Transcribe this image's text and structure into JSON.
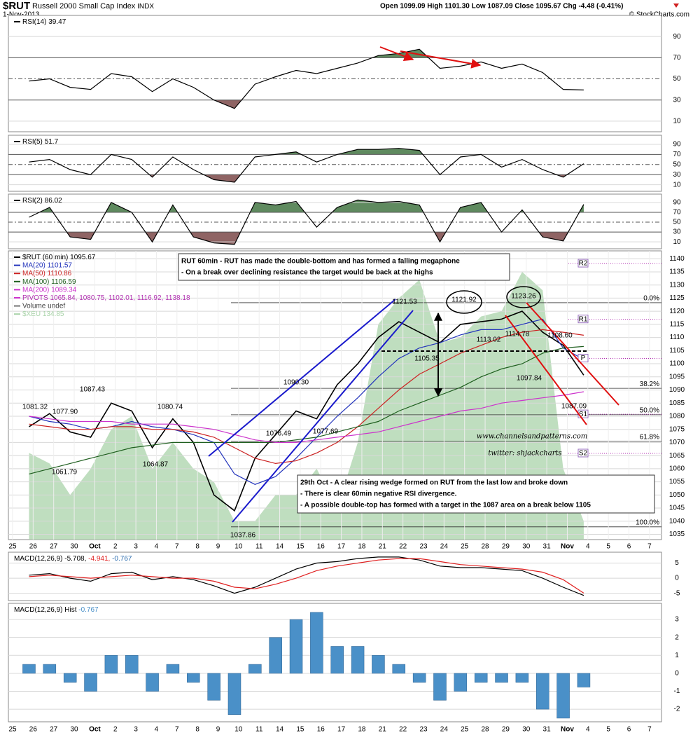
{
  "header": {
    "symbol": "$RUT",
    "name": "Russell 2000 Small Cap Index",
    "exchange": "INDX",
    "date": "1-Nov-2013",
    "quote": "Open 1099.09   High 1101.30   Low 1087.09   Close 1095.67   Chg -4.48 (-0.41%)",
    "credit": "© StockCharts.com"
  },
  "chart_data": [
    {
      "type": "line",
      "ylim": [
        0,
        110
      ],
      "yticks": [
        10,
        30,
        50,
        70,
        90
      ],
      "fill_colors": [
        "#8f6464",
        "#5f8a5f"
      ],
      "series": [
        {
          "name": "RSI(14)",
          "color": "#000000",
          "values": [
            48,
            50,
            42,
            40,
            55,
            52,
            38,
            50,
            42,
            30,
            22,
            45,
            52,
            58,
            55,
            60,
            65,
            72,
            74,
            78,
            60,
            62,
            66,
            60,
            64,
            56,
            40,
            39.47
          ]
        }
      ]
    },
    {
      "type": "line",
      "ylim": [
        -3,
        108
      ],
      "yticks": [
        10,
        30,
        50,
        70,
        90
      ],
      "fill_colors": [
        "#8f6464",
        "#5f8a5f"
      ],
      "series": [
        {
          "name": "RSI(5)",
          "color": "#000000",
          "values": [
            55,
            60,
            40,
            30,
            70,
            60,
            25,
            65,
            40,
            20,
            15,
            65,
            70,
            75,
            55,
            70,
            80,
            80,
            82,
            78,
            30,
            65,
            70,
            45,
            60,
            40,
            25,
            51.7
          ]
        }
      ]
    },
    {
      "type": "line",
      "ylim": [
        -4,
        107
      ],
      "yticks": [
        10,
        30,
        50,
        70,
        90
      ],
      "fill_colors": [
        "#8f6464",
        "#5f8a5f"
      ],
      "series": [
        {
          "name": "RSI(2)",
          "color": "#000000",
          "values": [
            60,
            80,
            20,
            15,
            90,
            70,
            10,
            85,
            20,
            8,
            5,
            90,
            85,
            92,
            40,
            80,
            95,
            90,
            92,
            85,
            10,
            80,
            90,
            30,
            75,
            20,
            12,
            86.02
          ]
        }
      ]
    },
    {
      "type": "line",
      "ylim": [
        1033,
        1143
      ],
      "yticks": [
        1035,
        1040,
        1045,
        1050,
        1055,
        1060,
        1065,
        1070,
        1075,
        1080,
        1085,
        1090,
        1095,
        1100,
        1105,
        1110,
        1115,
        1120,
        1125,
        1130,
        1135,
        1140
      ],
      "x_axis_labels": [
        "25",
        "26",
        "27",
        "30",
        "Oct",
        "2",
        "3",
        "4",
        "7",
        "8",
        "9",
        "10",
        "11",
        "14",
        "15",
        "16",
        "17",
        "18",
        "21",
        "22",
        "23",
        "24",
        "25",
        "28",
        "29",
        "30",
        "31",
        "Nov",
        "4",
        "5",
        "6",
        "7"
      ],
      "series": [
        {
          "name": "$RUT (60 min)",
          "color": "#000000",
          "values": [
            1076,
            1081,
            1074,
            1072,
            1085,
            1082,
            1068,
            1079,
            1070,
            1050,
            1044,
            1064,
            1073,
            1082,
            1079,
            1092,
            1100,
            1110,
            1116,
            1112,
            1108,
            1115,
            1116,
            1117,
            1120,
            1112,
            1107,
            1095.67
          ]
        },
        {
          "name": "MA(20)",
          "color": "#2233bb",
          "values": [
            1080,
            1078,
            1077,
            1075,
            1076,
            1078,
            1076,
            1075,
            1073,
            1070,
            1058,
            1054,
            1057,
            1064,
            1072,
            1080,
            1087,
            1095,
            1102,
            1106,
            1108,
            1111,
            1113,
            1113,
            1115,
            1117,
            1106,
            1101.57
          ]
        },
        {
          "name": "MA(50)",
          "color": "#cc2222",
          "values": [
            1077,
            1076,
            1075,
            1075,
            1076,
            1076,
            1075,
            1075,
            1074,
            1072,
            1068,
            1064,
            1062,
            1063,
            1066,
            1070,
            1076,
            1083,
            1090,
            1096,
            1100,
            1104,
            1107,
            1110,
            1112,
            1113,
            1112,
            1110.86
          ]
        },
        {
          "name": "MA(100)",
          "color": "#1e5e1e",
          "values": [
            1058,
            1060,
            1062,
            1064,
            1066,
            1068,
            1069,
            1070,
            1070,
            1070,
            1070,
            1070,
            1070,
            1071,
            1072,
            1074,
            1076,
            1078,
            1082,
            1085,
            1088,
            1091,
            1095,
            1098,
            1100,
            1104,
            1106,
            1106.59
          ]
        },
        {
          "name": "MA(200)",
          "color": "#cc33cc",
          "values": [
            1080,
            1079,
            1078,
            1078,
            1078,
            1077,
            1077,
            1077,
            1076,
            1075,
            1073,
            1071,
            1070,
            1070,
            1071,
            1072,
            1073,
            1074,
            1076,
            1078,
            1080,
            1082,
            1083,
            1085,
            1086,
            1087,
            1088,
            1089.34
          ]
        },
        {
          "name": "$XEU",
          "color": "#a9d3a9",
          "style": "area",
          "legend_value": 134.85,
          "values": [
            1066,
            1062,
            1050,
            1060,
            1075,
            1080,
            1060,
            1070,
            1060,
            1055,
            1040,
            1040,
            1050,
            1050,
            1060,
            1045,
            1070,
            1115,
            1125,
            1132,
            1108,
            1110,
            1118,
            1120,
            1135,
            1128,
            1060,
            1040
          ]
        }
      ],
      "pivots_name": "PIVOTS",
      "pivots": [
        {
          "value": 1065.84,
          "label": "1065.84,"
        },
        {
          "value": 1080.75,
          "label": "1080.75,"
        },
        {
          "value": 1102.01,
          "label": "1102.01,"
        },
        {
          "value": 1116.92,
          "label": "1116.92,"
        },
        1138.18
      ],
      "pivot_labels": [
        "S2",
        "S1",
        "P",
        "R1",
        "R2"
      ],
      "volume_label": "Volume undef",
      "fib_levels": [
        {
          "value": 1123.26,
          "label": "0.0%"
        },
        {
          "value": 1090.64,
          "label": "38.2%"
        },
        {
          "value": 1080.56,
          "label": "50.0%"
        },
        {
          "value": 1070.48,
          "label": "61.8%"
        },
        {
          "value": 1037.86,
          "label": "100.0%"
        }
      ],
      "price_labels": [
        1081.32,
        1087.43,
        {
          "value": 1077.9,
          "label": "1077.90"
        },
        1080.74,
        1061.79,
        1064.87,
        1037.86,
        1076.49,
        {
          "value": 1090.3,
          "label": "1090.30"
        },
        1077.69,
        1121.53,
        1105.35,
        1121.92,
        1123.26,
        1113.02,
        1114.78,
        {
          "value": 1108.6,
          "label": "1108.60"
        },
        1097.84,
        1087.09
      ],
      "notes": [
        [
          "RUT 60min - RUT has made the double-bottom and has formed a falling megaphone",
          "- On a break over declining resistance the target would be back at the highs"
        ],
        [
          "29th Oct - A clear rising wedge formed on RUT from the last low and broke down",
          "- There is clear 60min negative RSI divergence.",
          "- A possible double-top has formed with a target in the 1087 area on a break below 1105"
        ]
      ],
      "watermark": [
        "www.channelsandpatterns.com",
        "twitter: shjackcharts"
      ]
    },
    {
      "type": "line",
      "title": "MACD(12,26,9)",
      "ylim": [
        -7.4,
        8.6
      ],
      "yticks": [
        -5,
        0,
        5
      ],
      "legend_values": [
        {
          "value": -5.708,
          "label": "-5.708,"
        },
        {
          "value": -4.941,
          "label": "-4.941,"
        },
        -0.767
      ],
      "legend_colors": [
        "#000000",
        "#e02020",
        "#2f6fb0"
      ],
      "series": [
        {
          "color": "#000000",
          "values": [
            1,
            1.5,
            0,
            -1,
            1.5,
            2,
            -0.5,
            0.5,
            -0.5,
            -2.5,
            -5,
            -3,
            0,
            3,
            5,
            5.5,
            6.5,
            7,
            7,
            6,
            4,
            3.5,
            3.5,
            3,
            2.5,
            0,
            -3,
            -5.708
          ]
        },
        {
          "color": "#e02020",
          "values": [
            0.5,
            1,
            0.5,
            0,
            0.5,
            1,
            0.5,
            0,
            0,
            -1,
            -3,
            -3.5,
            -2,
            0,
            2.5,
            4,
            5,
            6,
            6.5,
            6.5,
            5.5,
            4.5,
            4,
            3.5,
            3,
            2,
            -0.5,
            -4.941
          ]
        }
      ]
    },
    {
      "type": "bar",
      "title": "MACD(12,26,9) Hist",
      "color": "#4a90c8",
      "ylim": [
        -2.7,
        3.9
      ],
      "yticks": [
        -2,
        -1,
        0,
        1,
        2,
        3
      ],
      "values": [
        0.5,
        0.5,
        -0.5,
        -1,
        1,
        1,
        -1,
        0.5,
        -0.5,
        -1.5,
        -2.3,
        0.5,
        2,
        3,
        3.4,
        1.5,
        1.5,
        1,
        0.5,
        -0.5,
        -1.5,
        -1,
        -0.5,
        -0.5,
        -0.5,
        -2,
        -2.5,
        -0.767
      ]
    }
  ]
}
